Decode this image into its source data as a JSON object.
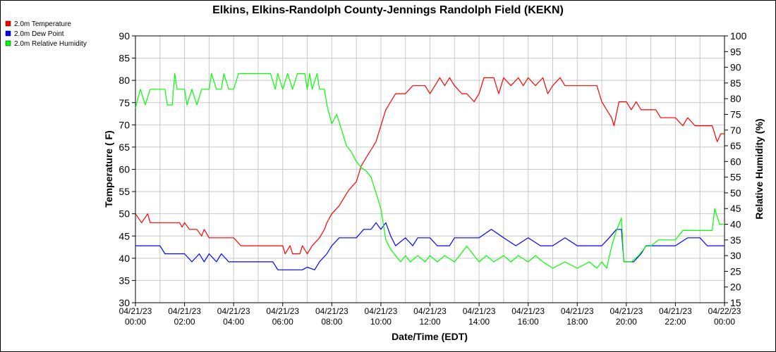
{
  "chart_data": {
    "type": "line",
    "title": "Elkins, Elkins-Randolph County-Jennings Randolph Field (KEKN)",
    "xlabel": "Date/Time (EDT)",
    "ylabel": "Temperature ( F)",
    "y2label": "Relative Humidity (%)",
    "ylim": [
      30,
      90
    ],
    "y2lim": [
      15,
      100
    ],
    "xlim_hours": [
      0,
      24
    ],
    "grid": true,
    "legend_position": "top-left",
    "yticks": [
      "30",
      "35",
      "40",
      "45",
      "50",
      "55",
      "60",
      "65",
      "70",
      "75",
      "80",
      "85",
      "90"
    ],
    "y2ticks": [
      "15",
      "20",
      "25",
      "30",
      "35",
      "40",
      "45",
      "50",
      "55",
      "60",
      "65",
      "70",
      "75",
      "80",
      "85",
      "90",
      "95",
      "100"
    ],
    "xticks": [
      {
        "date": "04/21/23",
        "time": "00:00"
      },
      {
        "date": "04/21/23",
        "time": "02:00"
      },
      {
        "date": "04/21/23",
        "time": "04:00"
      },
      {
        "date": "04/21/23",
        "time": "06:00"
      },
      {
        "date": "04/21/23",
        "time": "08:00"
      },
      {
        "date": "04/21/23",
        "time": "10:00"
      },
      {
        "date": "04/21/23",
        "time": "12:00"
      },
      {
        "date": "04/21/23",
        "time": "14:00"
      },
      {
        "date": "04/21/23",
        "time": "16:00"
      },
      {
        "date": "04/21/23",
        "time": "18:00"
      },
      {
        "date": "04/21/23",
        "time": "20:00"
      },
      {
        "date": "04/21/23",
        "time": "22:00"
      },
      {
        "date": "04/22/23",
        "time": "00:00"
      }
    ],
    "series": [
      {
        "name": "2.0m Temperature",
        "color": "#ff0000",
        "axis": "left",
        "points": [
          [
            0,
            50
          ],
          [
            0.25,
            48
          ],
          [
            0.5,
            50
          ],
          [
            0.6,
            48
          ],
          [
            1.5,
            48
          ],
          [
            1.8,
            48
          ],
          [
            1.9,
            47
          ],
          [
            2,
            48
          ],
          [
            2.2,
            46.5
          ],
          [
            2.5,
            46.5
          ],
          [
            2.7,
            45
          ],
          [
            2.8,
            46.5
          ],
          [
            3,
            44.6
          ],
          [
            4,
            44.6
          ],
          [
            4.3,
            42.8
          ],
          [
            5,
            42.8
          ],
          [
            6,
            42.8
          ],
          [
            6.1,
            41
          ],
          [
            6.3,
            42.8
          ],
          [
            6.4,
            41
          ],
          [
            6.7,
            41
          ],
          [
            6.8,
            42.8
          ],
          [
            7,
            41
          ],
          [
            7.2,
            42.8
          ],
          [
            7.5,
            44.6
          ],
          [
            7.7,
            46.5
          ],
          [
            7.8,
            48
          ],
          [
            8,
            50
          ],
          [
            8.3,
            51.8
          ],
          [
            8.5,
            53.6
          ],
          [
            8.7,
            55.4
          ],
          [
            9,
            57.2
          ],
          [
            9.2,
            60.8
          ],
          [
            9.4,
            62.6
          ],
          [
            9.6,
            64.4
          ],
          [
            9.8,
            66.2
          ],
          [
            10,
            69.8
          ],
          [
            10.2,
            73.4
          ],
          [
            10.4,
            75.2
          ],
          [
            10.6,
            77
          ],
          [
            11,
            77
          ],
          [
            11.3,
            78.8
          ],
          [
            11.8,
            78.8
          ],
          [
            12,
            77
          ],
          [
            12.2,
            78.8
          ],
          [
            12.4,
            80.6
          ],
          [
            12.6,
            78.8
          ],
          [
            12.8,
            80.6
          ],
          [
            13,
            78.8
          ],
          [
            13.3,
            77
          ],
          [
            13.5,
            77
          ],
          [
            13.8,
            75.2
          ],
          [
            14,
            77
          ],
          [
            14.2,
            80.6
          ],
          [
            14.6,
            80.6
          ],
          [
            14.8,
            77
          ],
          [
            15,
            80.6
          ],
          [
            15.3,
            78.8
          ],
          [
            15.6,
            80.6
          ],
          [
            15.8,
            78.8
          ],
          [
            16,
            80.6
          ],
          [
            16.3,
            78.8
          ],
          [
            16.6,
            80.6
          ],
          [
            16.8,
            77
          ],
          [
            17,
            78.8
          ],
          [
            17.3,
            80.6
          ],
          [
            17.5,
            78.8
          ],
          [
            18,
            78.8
          ],
          [
            18.8,
            78.8
          ],
          [
            19,
            75.2
          ],
          [
            19.2,
            73.4
          ],
          [
            19.4,
            71.6
          ],
          [
            19.5,
            69.8
          ],
          [
            19.7,
            75.2
          ],
          [
            20,
            75.2
          ],
          [
            20.2,
            73.4
          ],
          [
            20.4,
            75.2
          ],
          [
            20.6,
            73.4
          ],
          [
            21.2,
            73.4
          ],
          [
            21.4,
            71.6
          ],
          [
            21.6,
            71.6
          ],
          [
            22,
            71.6
          ],
          [
            22.3,
            69.8
          ],
          [
            22.5,
            71.6
          ],
          [
            22.8,
            69.8
          ],
          [
            23.5,
            69.8
          ],
          [
            23.7,
            66.2
          ],
          [
            23.85,
            68
          ],
          [
            24,
            68
          ]
        ]
      },
      {
        "name": "2.0m Dew Point",
        "color": "#0000ff",
        "axis": "left",
        "points": [
          [
            0,
            42.8
          ],
          [
            1,
            42.8
          ],
          [
            1.2,
            41
          ],
          [
            2,
            41
          ],
          [
            2.3,
            39.2
          ],
          [
            2.6,
            41
          ],
          [
            2.8,
            39.2
          ],
          [
            3,
            41
          ],
          [
            3.3,
            39.2
          ],
          [
            3.5,
            41
          ],
          [
            3.8,
            39.2
          ],
          [
            4,
            39.2
          ],
          [
            5,
            39.2
          ],
          [
            5.6,
            39.2
          ],
          [
            5.8,
            37.4
          ],
          [
            6.5,
            37.4
          ],
          [
            6.8,
            37.4
          ],
          [
            7,
            38
          ],
          [
            7.3,
            37.4
          ],
          [
            7.5,
            39.2
          ],
          [
            7.8,
            41
          ],
          [
            8,
            42.8
          ],
          [
            8.3,
            44.6
          ],
          [
            9,
            44.6
          ],
          [
            9.3,
            46.5
          ],
          [
            9.6,
            46.5
          ],
          [
            9.8,
            48
          ],
          [
            10,
            46.5
          ],
          [
            10.2,
            48
          ],
          [
            10.4,
            45
          ],
          [
            10.6,
            42.8
          ],
          [
            11,
            44.6
          ],
          [
            11.3,
            42.8
          ],
          [
            11.5,
            44.6
          ],
          [
            12,
            44.6
          ],
          [
            12.3,
            42.8
          ],
          [
            12.8,
            42.8
          ],
          [
            13,
            44.6
          ],
          [
            13.5,
            44.6
          ],
          [
            14,
            44.6
          ],
          [
            14.5,
            46.5
          ],
          [
            15,
            44.6
          ],
          [
            15.5,
            42.8
          ],
          [
            16,
            44.6
          ],
          [
            16.5,
            42.8
          ],
          [
            17,
            42.8
          ],
          [
            17.5,
            44.6
          ],
          [
            18,
            42.8
          ],
          [
            18.5,
            42.8
          ],
          [
            19,
            42.8
          ],
          [
            19.3,
            44.6
          ],
          [
            19.6,
            46.5
          ],
          [
            19.8,
            46.5
          ],
          [
            19.9,
            39.2
          ],
          [
            20.3,
            39.2
          ],
          [
            20.6,
            41
          ],
          [
            20.8,
            42.8
          ],
          [
            21.3,
            42.8
          ],
          [
            22,
            42.8
          ],
          [
            22.5,
            44.6
          ],
          [
            23,
            44.6
          ],
          [
            23.3,
            42.8
          ],
          [
            24,
            42.8
          ]
        ]
      },
      {
        "name": "2.0m Relative Humidity",
        "color": "#00ff00",
        "axis": "right",
        "points": [
          [
            0,
            77
          ],
          [
            0.2,
            83
          ],
          [
            0.4,
            78
          ],
          [
            0.6,
            83
          ],
          [
            1.2,
            83
          ],
          [
            1.3,
            78
          ],
          [
            1.5,
            78
          ],
          [
            1.6,
            88
          ],
          [
            1.7,
            83
          ],
          [
            2,
            83
          ],
          [
            2.1,
            78
          ],
          [
            2.3,
            83
          ],
          [
            2.5,
            78
          ],
          [
            2.7,
            83
          ],
          [
            3,
            83
          ],
          [
            3.1,
            88
          ],
          [
            3.3,
            83
          ],
          [
            3.5,
            83
          ],
          [
            3.6,
            88
          ],
          [
            3.8,
            83
          ],
          [
            4,
            83
          ],
          [
            4.2,
            88
          ],
          [
            4.5,
            88
          ],
          [
            5,
            88
          ],
          [
            5.5,
            88
          ],
          [
            5.7,
            83
          ],
          [
            5.8,
            88
          ],
          [
            6,
            83
          ],
          [
            6.2,
            88
          ],
          [
            6.4,
            83
          ],
          [
            6.6,
            88
          ],
          [
            6.9,
            88
          ],
          [
            7,
            83
          ],
          [
            7.1,
            88
          ],
          [
            7.2,
            83
          ],
          [
            7.4,
            88
          ],
          [
            7.5,
            83
          ],
          [
            7.7,
            83
          ],
          [
            7.8,
            78
          ],
          [
            8,
            72
          ],
          [
            8.2,
            75
          ],
          [
            8.4,
            70
          ],
          [
            8.6,
            65
          ],
          [
            8.8,
            63
          ],
          [
            9,
            60
          ],
          [
            9.2,
            58
          ],
          [
            9.4,
            57
          ],
          [
            9.6,
            55
          ],
          [
            9.8,
            50
          ],
          [
            10,
            45
          ],
          [
            10.2,
            35
          ],
          [
            10.4,
            32
          ],
          [
            10.6,
            30
          ],
          [
            10.8,
            28
          ],
          [
            11,
            30
          ],
          [
            11.2,
            28
          ],
          [
            11.5,
            30
          ],
          [
            11.8,
            28
          ],
          [
            12,
            30
          ],
          [
            12.3,
            28
          ],
          [
            12.6,
            30
          ],
          [
            13,
            28
          ],
          [
            13.2,
            30
          ],
          [
            13.5,
            33
          ],
          [
            13.8,
            30
          ],
          [
            14,
            28
          ],
          [
            14.3,
            30
          ],
          [
            14.6,
            28
          ],
          [
            15,
            30
          ],
          [
            15.3,
            28
          ],
          [
            15.6,
            30
          ],
          [
            16,
            28
          ],
          [
            16.3,
            30
          ],
          [
            16.6,
            28
          ],
          [
            17,
            26
          ],
          [
            17.5,
            28
          ],
          [
            18,
            26
          ],
          [
            18.5,
            28
          ],
          [
            18.8,
            26
          ],
          [
            19,
            28
          ],
          [
            19.2,
            26
          ],
          [
            19.4,
            33
          ],
          [
            19.6,
            38
          ],
          [
            19.8,
            42
          ],
          [
            19.9,
            28
          ],
          [
            20.2,
            28
          ],
          [
            20.5,
            30
          ],
          [
            20.8,
            33
          ],
          [
            21,
            33
          ],
          [
            21.3,
            35
          ],
          [
            21.6,
            35
          ],
          [
            22,
            35
          ],
          [
            22.3,
            38
          ],
          [
            22.6,
            38
          ],
          [
            23,
            38
          ],
          [
            23.5,
            38
          ],
          [
            23.6,
            45
          ],
          [
            23.8,
            40
          ],
          [
            24,
            40
          ]
        ]
      }
    ]
  }
}
